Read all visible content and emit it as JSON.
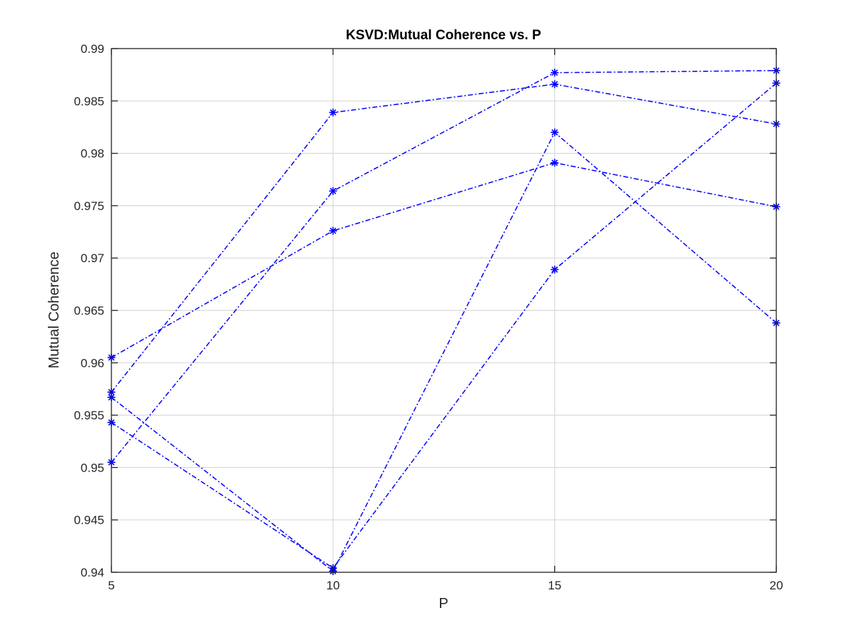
{
  "chart_data": {
    "type": "line",
    "title": "KSVD:Mutual Coherence vs. P",
    "xlabel": "P",
    "ylabel": "Mutual Coherence",
    "x": [
      5,
      10,
      15,
      20
    ],
    "xlim": [
      5,
      20
    ],
    "ylim": [
      0.94,
      0.99
    ],
    "xticks": [
      5,
      10,
      15,
      20
    ],
    "xtick_labels": [
      "5",
      "10",
      "15",
      "20"
    ],
    "yticks": [
      0.94,
      0.945,
      0.95,
      0.955,
      0.96,
      0.965,
      0.97,
      0.975,
      0.98,
      0.985,
      0.99
    ],
    "ytick_labels": [
      "0.94",
      "0.945",
      "0.95",
      "0.955",
      "0.96",
      "0.965",
      "0.97",
      "0.975",
      "0.98",
      "0.985",
      "0.99"
    ],
    "grid": true,
    "line_style": "dash-dot",
    "marker": "asterisk",
    "color": "#0000ff",
    "series": [
      {
        "values": [
          0.9505,
          0.9764,
          0.9877,
          0.9879
        ]
      },
      {
        "values": [
          0.9572,
          0.9839,
          0.9866,
          0.9828
        ]
      },
      {
        "values": [
          0.9605,
          0.9726,
          0.9791,
          0.9749
        ]
      },
      {
        "values": [
          0.9567,
          0.9401,
          0.982,
          0.9638
        ]
      },
      {
        "values": [
          0.9543,
          0.9404,
          0.9689,
          0.9867
        ]
      }
    ]
  }
}
